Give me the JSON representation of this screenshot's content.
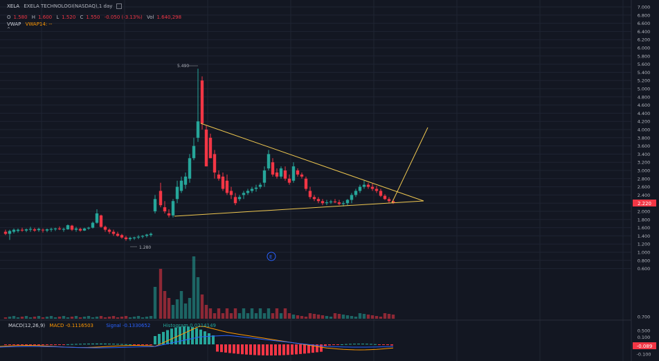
{
  "header": {
    "ticker": "XELA",
    "title": "EXELA TECHNOLOGI(NASDAQ),1 day",
    "ohlc": {
      "o_label": "O",
      "o_value": "1.580",
      "h_label": "H",
      "h_value": "1.600",
      "l_label": "L",
      "l_value": "1.520",
      "c_label": "C",
      "c_value": "1.550",
      "change": "-0.050 (-3.13%)",
      "vol_label": "Vol",
      "vol_value": "1.640,298"
    }
  },
  "indicators": {
    "vwap": "VWAP",
    "vwap14": "VWAP14: --",
    "collapse": "^"
  },
  "macd": {
    "label": "MACD(12,26,9)",
    "macd_value": "MACD -0.1116503",
    "signal_value": "Signal -0.1330652",
    "histogram_value": "Histogram 0.0214149"
  },
  "price_axis": [
    "7.000",
    "6.800",
    "6.600",
    "6.400",
    "6.200",
    "6.000",
    "5.800",
    "5.600",
    "5.400",
    "5.200",
    "5.000",
    "4.800",
    "4.600",
    "4.400",
    "4.200",
    "4.000",
    "3.800",
    "3.600",
    "3.400",
    "3.200",
    "3.000",
    "2.800",
    "2.600",
    "2.400",
    "2.200",
    "2.000",
    "1.800",
    "1.600",
    "1.400",
    "1.200",
    "1.000",
    "0.800",
    "0.600"
  ],
  "price_tag": "2.220",
  "macd_axis": [
    "0.700",
    "0.500",
    "0.300",
    "0.100",
    "-0.100"
  ],
  "macd_tag": "-0.089",
  "annotations": {
    "high_label": "5.490",
    "low_label": "1.280",
    "earnings_marker": "E"
  },
  "colors": {
    "bg": "#131722",
    "up": "#26a69a",
    "down": "#f23645",
    "trendline": "#f0c850",
    "macd_line": "#2962ff",
    "signal_line": "#ff9800",
    "grid": "#1f2433"
  }
}
